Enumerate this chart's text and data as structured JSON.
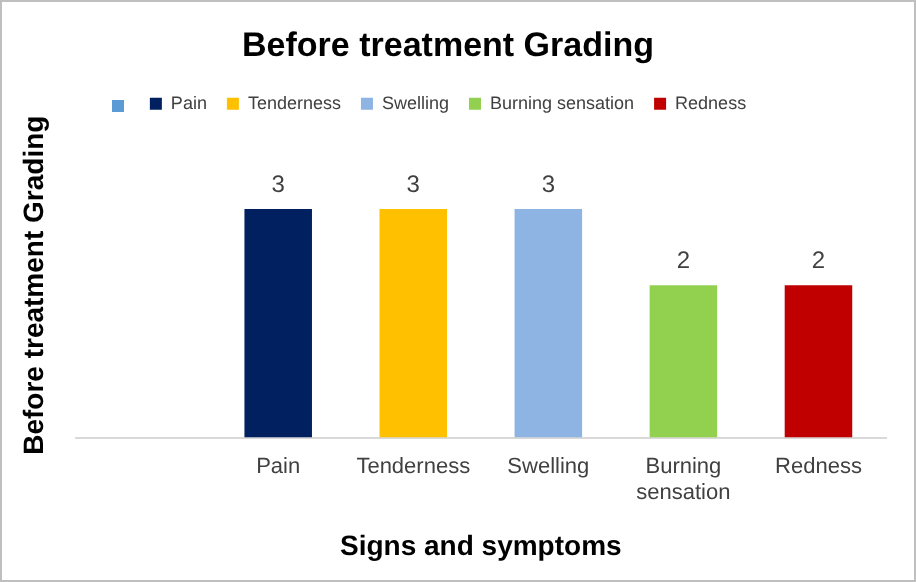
{
  "chart_data": {
    "type": "bar",
    "title": "Before treatment Grading",
    "xlabel": "Signs and symptoms",
    "ylabel": "Before treatment Grading",
    "categories": [
      null,
      "Pain",
      "Tenderness",
      "Swelling",
      "Burning sensation",
      "Redness"
    ],
    "series": [
      {
        "color": "#5b9bd5",
        "values": [
          null,
          null,
          null,
          null,
          null,
          null
        ]
      },
      {
        "name": "Pain",
        "color": "#002060",
        "values": [
          null,
          3,
          null,
          null,
          null,
          null
        ]
      },
      {
        "name": "Tenderness",
        "color": "#ffc000",
        "values": [
          null,
          null,
          3,
          null,
          null,
          null
        ]
      },
      {
        "name": "Swelling",
        "color": "#8db4e2",
        "values": [
          null,
          null,
          null,
          3,
          null,
          null
        ]
      },
      {
        "name": "Burning sensation",
        "color": "#92d050",
        "values": [
          null,
          null,
          null,
          null,
          2,
          null
        ]
      },
      {
        "name": "Redness",
        "color": "#c00000",
        "values": [
          null,
          null,
          null,
          null,
          null,
          2
        ]
      }
    ],
    "tick_labels": "x",
    "data_labels": true,
    "legend": "top"
  }
}
